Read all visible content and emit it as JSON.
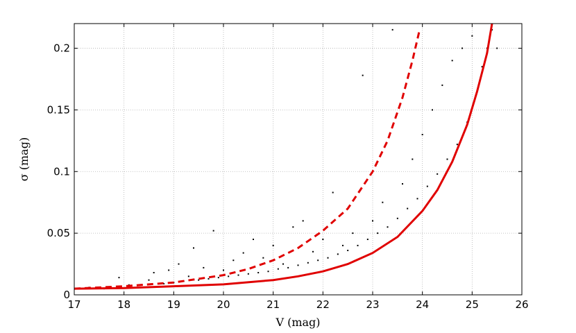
{
  "chart_data": {
    "type": "scatter",
    "title": "",
    "xlabel": "V (mag)",
    "ylabel": "σ (mag)",
    "xlim": [
      17,
      26
    ],
    "ylim": [
      0,
      0.22
    ],
    "xticks": [
      17,
      18,
      19,
      20,
      21,
      22,
      23,
      24,
      25,
      26
    ],
    "yticks": [
      0,
      0.05,
      0.1,
      0.15,
      0.2
    ],
    "ytick_labels": [
      "0",
      "0.05",
      "0.1",
      "0.15",
      "0.2"
    ],
    "grid": true,
    "colors": {
      "points": "#000000",
      "curves": "#e00000"
    },
    "series": [
      {
        "kind": "points",
        "description_of_density": "dense near lower envelope, spreading upward toward faint end",
        "x": [
          17.3,
          17.6,
          17.9,
          18.1,
          18.3,
          18.5,
          18.6,
          18.8,
          18.9,
          19.0,
          19.1,
          19.2,
          19.3,
          19.4,
          19.5,
          19.6,
          19.7,
          19.8,
          19.9,
          20.0,
          20.1,
          20.2,
          20.3,
          20.4,
          20.5,
          20.6,
          20.7,
          20.8,
          20.9,
          21.0,
          21.1,
          21.2,
          21.3,
          21.4,
          21.5,
          21.6,
          21.7,
          21.8,
          21.9,
          22.0,
          22.1,
          22.2,
          22.3,
          22.4,
          22.5,
          22.6,
          22.7,
          22.8,
          22.9,
          23.0,
          23.1,
          23.2,
          23.3,
          23.4,
          23.5,
          23.6,
          23.7,
          23.8,
          23.9,
          24.0,
          24.1,
          24.2,
          24.3,
          24.4,
          24.5,
          24.6,
          24.7,
          24.8,
          24.9,
          25.0,
          25.1,
          25.2,
          25.3,
          25.4,
          25.5
        ],
        "y": [
          0.006,
          0.005,
          0.014,
          0.008,
          0.006,
          0.012,
          0.018,
          0.009,
          0.02,
          0.01,
          0.025,
          0.011,
          0.015,
          0.038,
          0.012,
          0.022,
          0.013,
          0.052,
          0.014,
          0.02,
          0.015,
          0.028,
          0.016,
          0.034,
          0.017,
          0.045,
          0.018,
          0.03,
          0.019,
          0.04,
          0.021,
          0.025,
          0.022,
          0.055,
          0.024,
          0.06,
          0.026,
          0.035,
          0.028,
          0.045,
          0.03,
          0.083,
          0.033,
          0.04,
          0.036,
          0.05,
          0.04,
          0.178,
          0.045,
          0.06,
          0.05,
          0.075,
          0.055,
          0.215,
          0.062,
          0.09,
          0.07,
          0.11,
          0.078,
          0.13,
          0.088,
          0.15,
          0.098,
          0.17,
          0.11,
          0.19,
          0.122,
          0.2,
          0.14,
          0.21,
          0.165,
          0.185,
          0.2,
          0.215,
          0.2
        ]
      },
      {
        "kind": "solid-line",
        "x": [
          17.0,
          18.0,
          19.0,
          20.0,
          21.0,
          21.5,
          22.0,
          22.5,
          23.0,
          23.5,
          24.0,
          24.3,
          24.6,
          24.9,
          25.1,
          25.3,
          25.4
        ],
        "y": [
          0.005,
          0.0055,
          0.007,
          0.0085,
          0.012,
          0.015,
          0.019,
          0.025,
          0.034,
          0.047,
          0.068,
          0.085,
          0.108,
          0.138,
          0.165,
          0.196,
          0.22
        ]
      },
      {
        "kind": "dashed-line",
        "x": [
          17.0,
          18.0,
          19.0,
          20.0,
          20.5,
          21.0,
          21.5,
          22.0,
          22.5,
          23.0,
          23.3,
          23.6,
          23.8,
          23.95
        ],
        "y": [
          0.005,
          0.007,
          0.01,
          0.016,
          0.021,
          0.028,
          0.038,
          0.052,
          0.07,
          0.1,
          0.125,
          0.16,
          0.19,
          0.216
        ]
      }
    ]
  }
}
